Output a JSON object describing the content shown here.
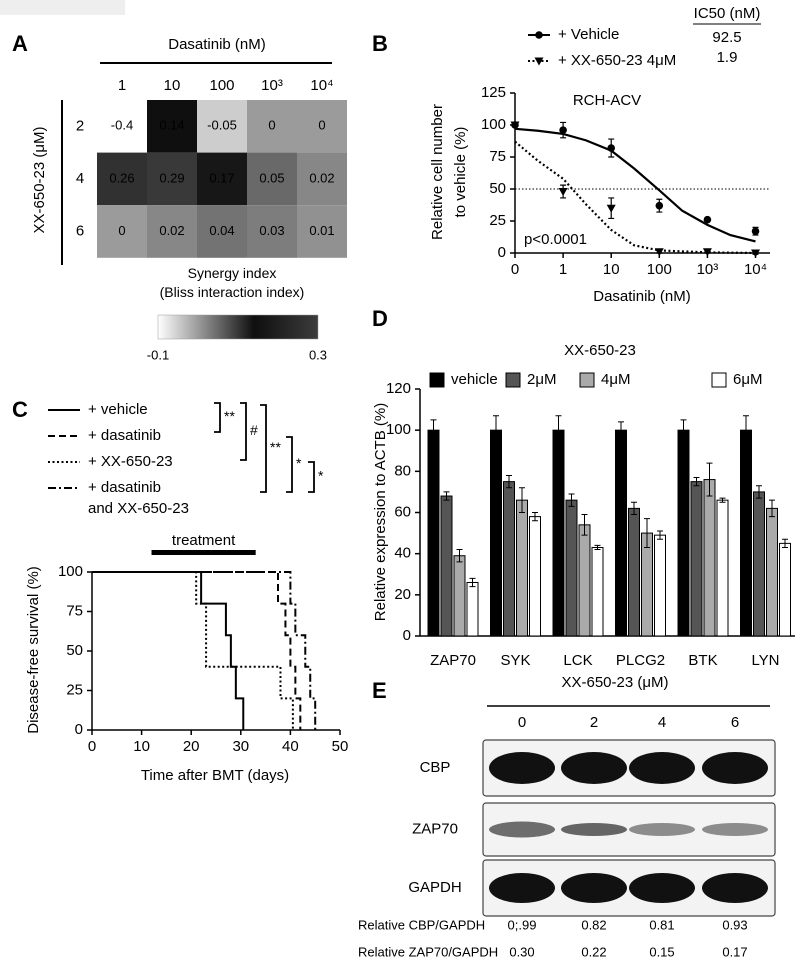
{
  "chart_data": [
    {
      "type": "heatmap",
      "panel": "A",
      "title": "Dasatinib (nM)",
      "categories": [
        "1",
        "10",
        "100",
        "10³",
        "10⁴"
      ],
      "ylabel": "XX-650-23 (μM)",
      "rows": [
        "2",
        "4",
        "6"
      ],
      "values": [
        [
          -0.4,
          0.14,
          -0.05,
          0,
          0
        ],
        [
          0.26,
          0.29,
          0.17,
          0.05,
          0.02
        ],
        [
          0,
          0.02,
          0.04,
          0.03,
          0.01
        ]
      ],
      "colorbar_label": "Synergy index\n(Bliss interaction index)",
      "colorbar": {
        "lim": [
          -0.1,
          0.3
        ],
        "ticks": [
          -0.1,
          0.3
        ]
      }
    },
    {
      "type": "line",
      "panel": "B",
      "title": "RCH-ACV",
      "legend_title": "IC50 (nM)",
      "xlabel": "Dasatinib (nM)",
      "ylabel": "Relative cell number\nto vehicle (%)",
      "xscale": "log",
      "xlim": [
        0,
        20000
      ],
      "xticks": [
        0,
        1,
        10,
        100,
        {
          "value": 1000,
          "label": "10³"
        },
        {
          "value": 10000,
          "label": "10⁴"
        }
      ],
      "ylim": [
        0,
        125
      ],
      "yticks": [
        0,
        25,
        50,
        75,
        100,
        125
      ],
      "reference_line": 50,
      "annotation": "p<0.0001",
      "series": [
        {
          "name": "+ Vehicle",
          "marker": "circle",
          "linestyle": "solid",
          "color": "#000000",
          "ic50": 92.5,
          "x": [
            0,
            1,
            10,
            100,
            1000,
            10000
          ],
          "values": [
            100,
            96,
            82,
            37,
            26,
            17
          ],
          "errors": [
            0,
            6,
            7,
            5,
            1,
            3
          ],
          "fit": {
            "x": [
              0,
              0.3,
              1,
              3,
              10,
              30,
              100,
              300,
              1000,
              3000,
              10000
            ],
            "values": [
              97,
              95.5,
              93,
              88,
              80,
              66,
              49,
              33,
              22,
              14,
              9
            ]
          }
        },
        {
          "name": "+ XX-650-23 4μM",
          "marker": "triangle-down",
          "linestyle": "dotted",
          "color": "#000000",
          "ic50": 1.9,
          "x": [
            0,
            1,
            10,
            100,
            1000,
            10000
          ],
          "values": [
            100,
            48,
            35,
            1,
            1,
            0
          ],
          "errors": [
            0,
            5,
            8,
            1,
            1,
            1
          ],
          "fit": {
            "x": [
              0,
              0.3,
              1,
              3,
              10,
              30,
              100,
              1000,
              10000
            ],
            "values": [
              87,
              72,
              58,
              38,
              18,
              6,
              2,
              0.5,
              0
            ]
          }
        }
      ]
    },
    {
      "type": "step",
      "panel": "C",
      "xlabel": "Time after BMT (days)",
      "ylabel": "Disease-free survival (%)",
      "xlim": [
        0,
        50
      ],
      "xticks": [
        0,
        10,
        20,
        30,
        40,
        50
      ],
      "ylim": [
        0,
        100
      ],
      "yticks": [
        0,
        25,
        50,
        75,
        100
      ],
      "treatment_label": "treatment",
      "treatment": [
        12,
        33
      ],
      "significance": [
        "**",
        "#",
        "**",
        "*",
        "*"
      ],
      "series": [
        {
          "name": "+ vehicle",
          "linestyle": "solid",
          "x": [
            0,
            22,
            27,
            28,
            29,
            30.5
          ],
          "values": [
            100,
            80,
            60,
            40,
            20,
            0
          ]
        },
        {
          "name": "+ dasatinib",
          "linestyle": "dashed",
          "x": [
            0,
            37.5,
            39,
            40,
            41,
            42
          ],
          "values": [
            100,
            80,
            60,
            40,
            20,
            0
          ]
        },
        {
          "name": "+ XX-650-23",
          "linestyle": "dotted",
          "x": [
            0,
            21,
            23,
            38,
            40.5
          ],
          "values": [
            100,
            80,
            40,
            20,
            0
          ]
        },
        {
          "name": "+ dasatinib\nand XX-650-23",
          "linestyle": "dashdot",
          "x": [
            0,
            40,
            41,
            43,
            44,
            45
          ],
          "values": [
            100,
            80,
            60,
            40,
            20,
            0
          ]
        }
      ]
    },
    {
      "type": "bar",
      "panel": "D",
      "title": "XX-650-23",
      "ylabel": "Relative expression to ACTB (%)",
      "categories": [
        "ZAP70",
        "SYK",
        "LCK",
        "PLCG2",
        "BTK",
        "LYN"
      ],
      "ylim": [
        0,
        120
      ],
      "yticks": [
        0,
        20,
        40,
        60,
        80,
        100,
        120
      ],
      "series": [
        {
          "name": "vehicle",
          "color": "#000000",
          "values": [
            100,
            100,
            100,
            100,
            100,
            100
          ],
          "errors": [
            5,
            7,
            7,
            4,
            5,
            7
          ]
        },
        {
          "name": "2μM",
          "color": "#555555",
          "values": [
            68,
            75,
            66,
            62,
            75,
            70
          ],
          "errors": [
            2,
            3,
            3,
            3,
            2,
            3
          ]
        },
        {
          "name": "4μM",
          "color": "#aaaaaa",
          "values": [
            39,
            66,
            54,
            50,
            76,
            62
          ],
          "errors": [
            3,
            6,
            5,
            7,
            8,
            4
          ]
        },
        {
          "name": "6μM",
          "color": "#ffffff",
          "values": [
            26,
            58,
            43,
            49,
            66,
            45
          ],
          "errors": [
            2,
            2,
            1,
            2,
            1,
            2
          ]
        }
      ]
    }
  ],
  "blot": {
    "panel": "E",
    "title": "XX-650-23 (μM)",
    "lanes": [
      "0",
      "2",
      "4",
      "6"
    ],
    "bands": [
      "CBP",
      "ZAP70",
      "GAPDH"
    ],
    "quant": [
      {
        "label": "Relative CBP/GAPDH",
        "values": [
          "0;.99",
          "0.82",
          "0.81",
          "0.93"
        ]
      },
      {
        "label": "Relative ZAP70/GAPDH",
        "values": [
          "0.30",
          "0.22",
          "0.15",
          "0.17"
        ]
      }
    ]
  }
}
